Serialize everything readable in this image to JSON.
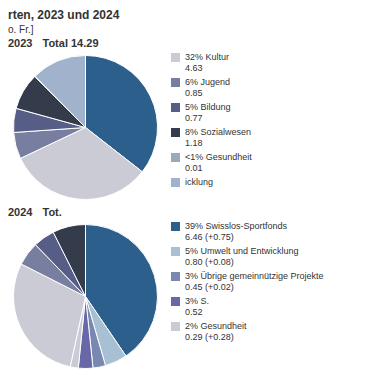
{
  "title": "rten, 2023 und 2024",
  "subtitle": "o. Fr.]",
  "chart_data": [
    {
      "type": "pie",
      "title": "2023",
      "subtitle": "Total 14.29",
      "categories": [
        null,
        "32% Kultur\n4.63",
        "6% Jugend\n0.85",
        "5% Bildung\n0.77",
        "8% Sozialwesen\n1.18",
        "<1% Gesundheit\n0.01",
        "icklung"
      ],
      "values": [
        5.08,
        4.63,
        0.85,
        0.77,
        1.18,
        0.01,
        1.77
      ],
      "colors": [
        "#2d5f8c",
        "#cbcbd6",
        "#787ea0",
        "#565e88",
        "#343c4c",
        "#9aaabb",
        "#a0b2cc"
      ]
    },
    {
      "type": "pie",
      "title": "2024",
      "subtitle": "Tot.",
      "categories": [
        "39% Swisslos-Sportfonds\n6.46 (+0.75)",
        "5% Umwelt und Entwicklung\n0.80 (+0.08)",
        "3% Übrige gemeinnützige Projekte\n0.45 (+0.02)",
        "3% S.\n0.52",
        "2% Gesundheit\n0.29 (+0.28)",
        null,
        null,
        null,
        null
      ],
      "values": [
        6.46,
        0.8,
        0.45,
        0.52,
        0.29,
        4.63,
        0.85,
        0.77,
        1.18
      ],
      "colors": [
        "#2d5f8c",
        "#a8c0d4",
        "#7888b0",
        "#6868a8",
        "#cbcbd6",
        "#cbcbd6",
        "#787ea0",
        "#565e88",
        "#343c4c"
      ]
    }
  ]
}
